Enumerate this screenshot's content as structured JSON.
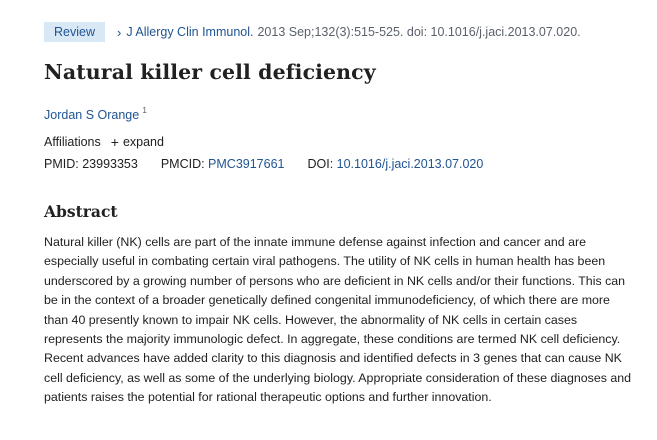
{
  "citation": {
    "badge": "Review",
    "journal": "J Allergy Clin Immunol.",
    "details": "2013 Sep;132(3):515-525. doi: 10.1016/j.jaci.2013.07.020."
  },
  "article": {
    "title": "Natural killer cell deficiency",
    "author": "Jordan S Orange",
    "author_sup": "1"
  },
  "affiliations": {
    "label": "Affiliations",
    "expand": "expand"
  },
  "identifiers": {
    "pmid_label": "PMID:",
    "pmid": "23993353",
    "pmcid_label": "PMCID:",
    "pmcid": "PMC3917661",
    "doi_label": "DOI:",
    "doi": "10.1016/j.jaci.2013.07.020"
  },
  "abstract": {
    "heading": "Abstract",
    "text": "Natural killer (NK) cells are part of the innate immune defense against infection and cancer and are especially useful in combating certain viral pathogens. The utility of NK cells in human health has been underscored by a growing number of persons who are deficient in NK cells and/or their functions. This can be in the context of a broader genetically defined congenital immunodeficiency, of which there are more than 40 presently known to impair NK cells. However, the abnormality of NK cells in certain cases represents the majority immunologic defect. In aggregate, these conditions are termed NK cell deficiency. Recent advances have added clarity to this diagnosis and identified defects in 3 genes that can cause NK cell deficiency, as well as some of the underlying biology. Appropriate consideration of these diagnoses and patients raises the potential for rational therapeutic options and further innovation."
  },
  "colors": {
    "link": "#205493",
    "badge_bg": "#d9e8f5",
    "text": "#212121",
    "muted": "#5b616b"
  },
  "icons": {
    "journal_chevron": "chevron-right-icon",
    "expand_plus": "plus-icon"
  }
}
